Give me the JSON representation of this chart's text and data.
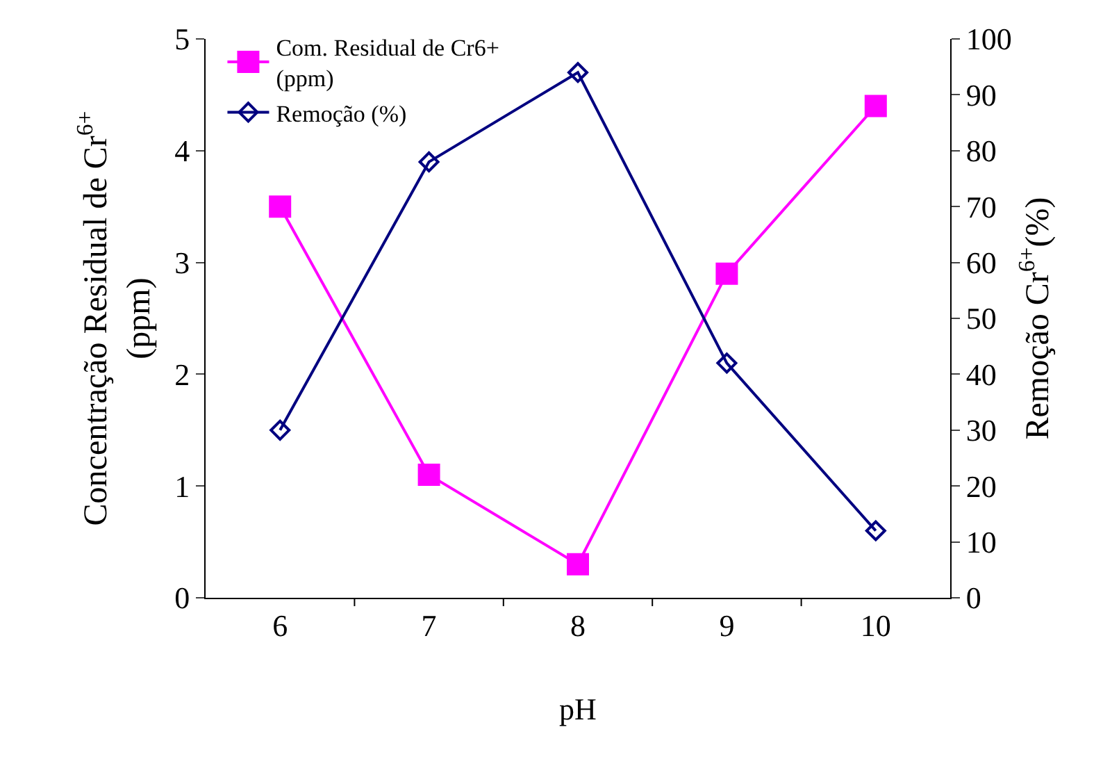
{
  "chart_data": {
    "type": "line",
    "xlabel": "pH",
    "ylabel": "Concentração Residual de Cr$^{6+}$ (ppm)",
    "y2label": "Remoção Cr$^{6+}$(%)",
    "categories": [
      "6",
      "7",
      "8",
      "9",
      "10"
    ],
    "series": [
      {
        "name": "Com. Residual de Cr6+ (ppm)",
        "color": "#ff00ff",
        "marker": "square",
        "values": [
          3.5,
          1.1,
          0.3,
          2.9,
          4.4
        ]
      },
      {
        "name": "Remoção (%)",
        "color": "#000080",
        "marker": "diamond",
        "axis": "y2",
        "values": [
          30,
          78,
          94,
          42,
          12
        ]
      }
    ],
    "ylim": [
      0,
      5
    ],
    "yticks": [
      0,
      1,
      2,
      3,
      4,
      5
    ],
    "y2lim": [
      0,
      100
    ],
    "y2ticks": [
      0,
      10,
      20,
      30,
      40,
      50,
      60,
      70,
      80,
      90,
      100
    ],
    "grid": false,
    "legend": "top left",
    "line_style": "solid"
  }
}
